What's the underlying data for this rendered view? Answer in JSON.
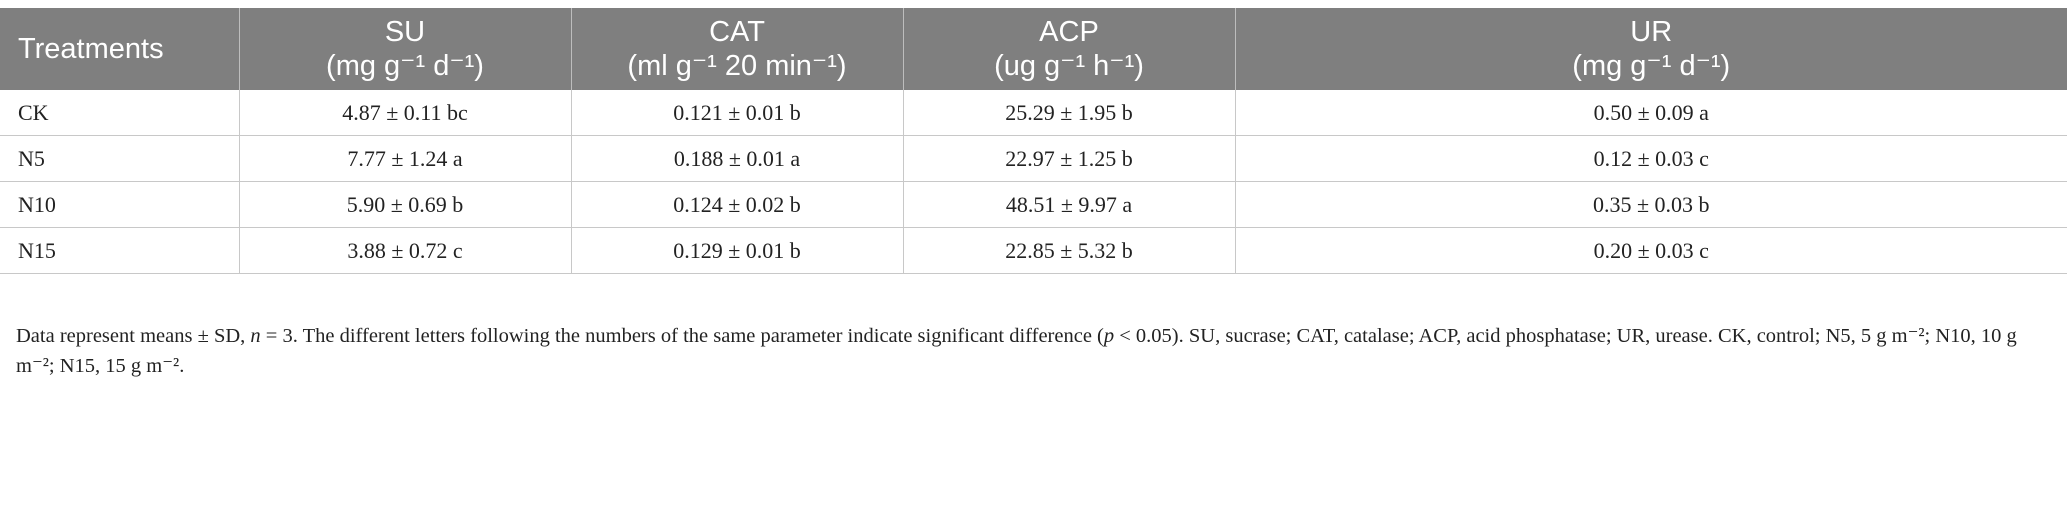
{
  "table": {
    "columns": [
      {
        "title": "Treatments"
      },
      {
        "title": "SU",
        "unit": "(mg g⁻¹ d⁻¹)"
      },
      {
        "title": "CAT",
        "unit": "(ml g⁻¹ 20 min⁻¹)"
      },
      {
        "title": "ACP",
        "unit": "(ug g⁻¹ h⁻¹)"
      },
      {
        "title": "UR",
        "unit": "(mg g⁻¹ d⁻¹)"
      }
    ],
    "rows": [
      [
        "CK",
        "4.87 ± 0.11 bc",
        "0.121 ± 0.01 b",
        "25.29 ± 1.95 b",
        "0.50 ± 0.09 a"
      ],
      [
        "N5",
        "7.77 ± 1.24 a",
        "0.188 ± 0.01 a",
        "22.97 ± 1.25 b",
        "0.12 ± 0.03 c"
      ],
      [
        "N10",
        "5.90 ± 0.69 b",
        "0.124 ± 0.02 b",
        "48.51 ± 9.97 a",
        "0.35 ± 0.03 b"
      ],
      [
        "N15",
        "3.88 ± 0.72 c",
        "0.129 ± 0.01 b",
        "22.85 ± 5.32 b",
        "0.20 ± 0.03 c"
      ]
    ]
  },
  "footnote": [
    "Data represent means ± SD, ",
    "n",
    " = 3. The different letters following the numbers of the same parameter indicate significant difference (",
    "p",
    " < 0.05). SU, sucrase; CAT, catalase; ACP, acid phosphatase; UR, urease. CK, control; N5, 5 g m⁻²; N10, 10 g m⁻²; N15, 15 g m⁻²."
  ]
}
